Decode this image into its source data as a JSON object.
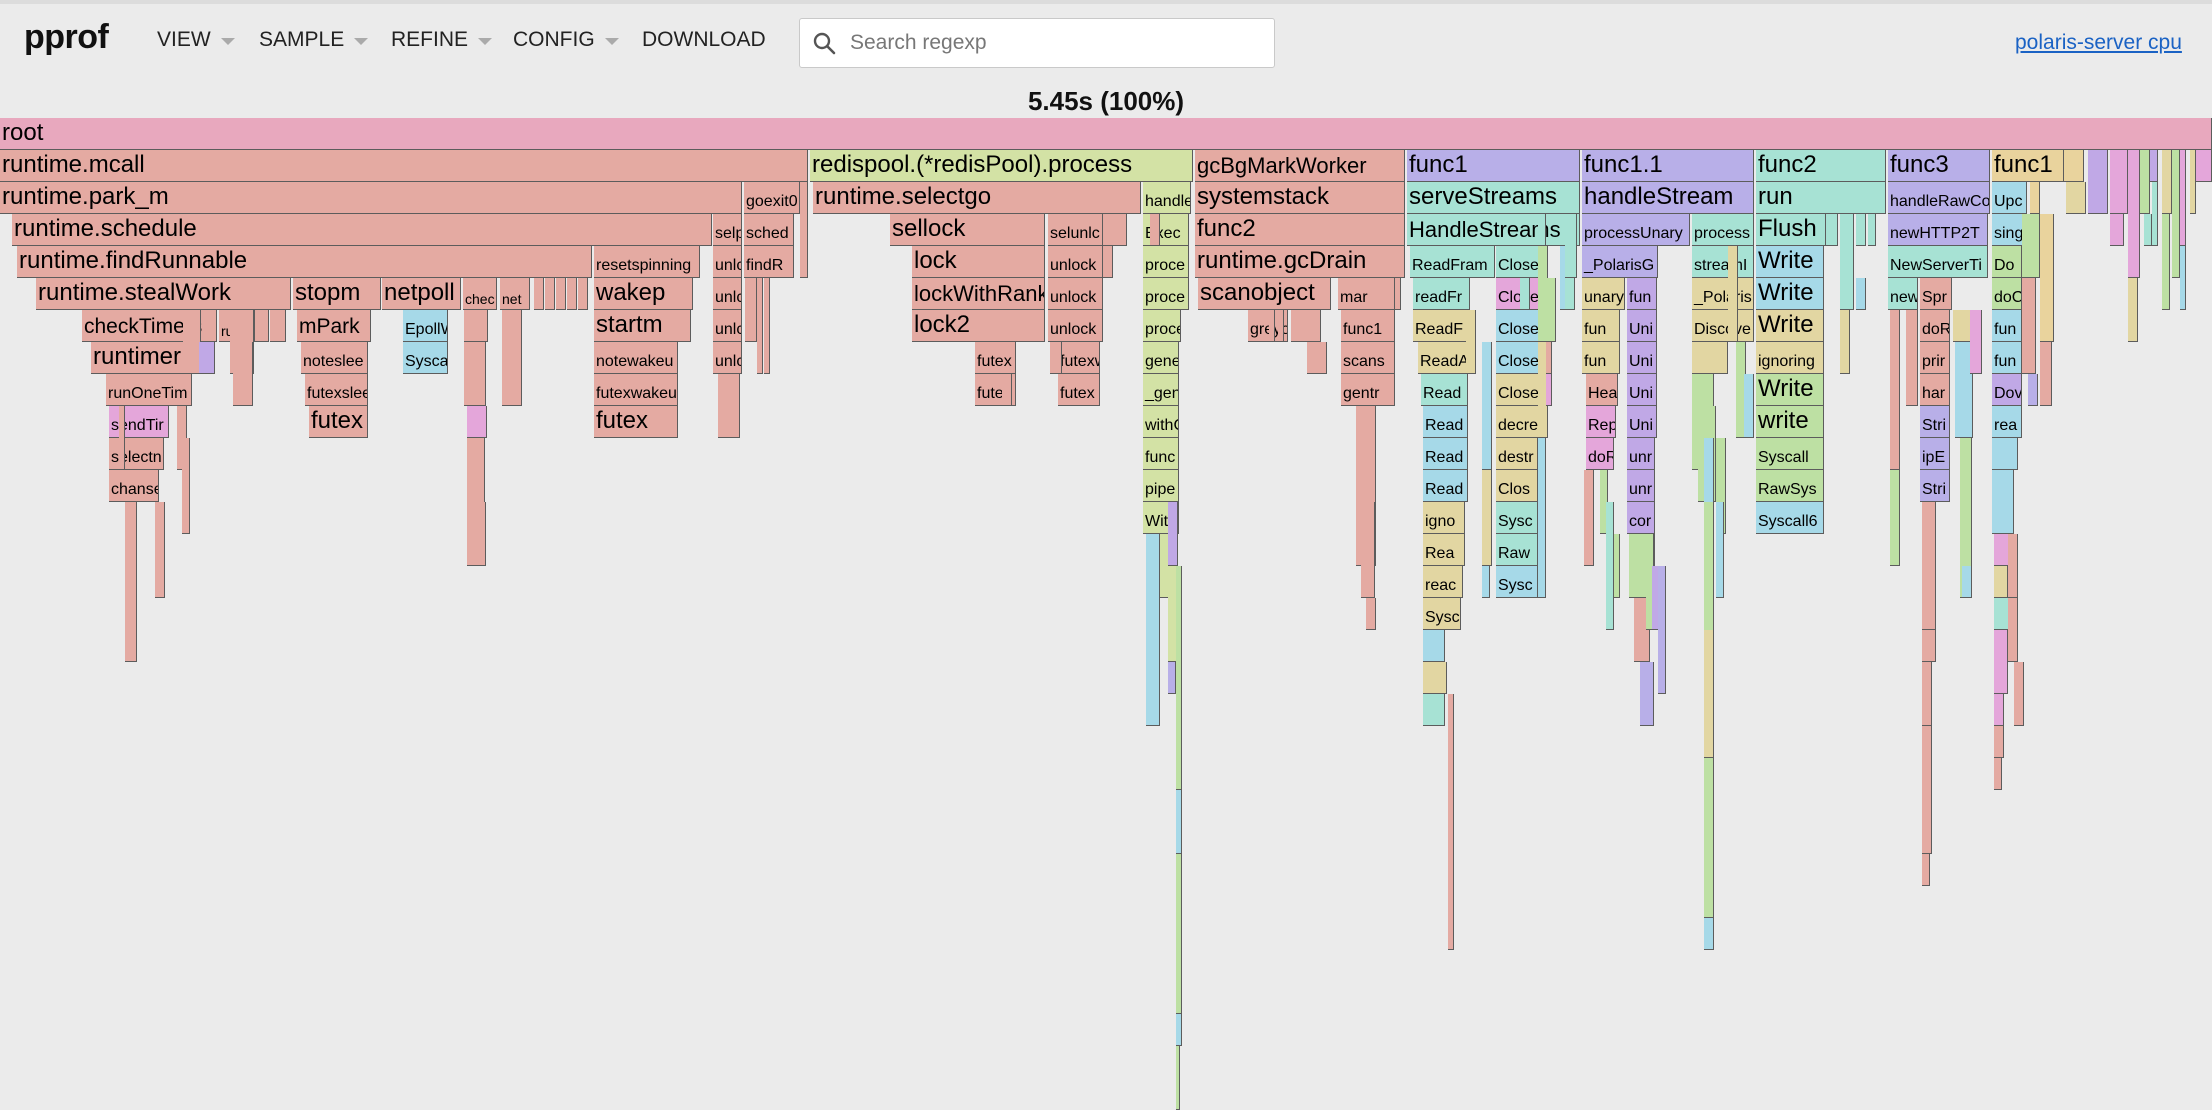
{
  "app": {
    "logo": "pprof",
    "menus": [
      {
        "label": "VIEW"
      },
      {
        "label": "SAMPLE"
      },
      {
        "label": "REFINE"
      },
      {
        "label": "CONFIG"
      },
      {
        "label": "DOWNLOAD"
      }
    ],
    "search_placeholder": "Search regexp",
    "profile_name": "polaris-server cpu",
    "total": "5.45s (100%)"
  },
  "colors": {
    "root": "#e8a8be",
    "runtime": "#e4aaa2",
    "redis": "#d3e2a5",
    "gc": "#e4aaa2",
    "grpc_purple": "#b8afe8",
    "grpc_teal": "#a7e2d4",
    "grpc_blue": "#a6d9e8",
    "tan": "#e2d6a2",
    "pink": "#e4a6da",
    "green": "#bde0a3",
    "lavender": "#c0a8e6",
    "sand": "#e9d39d"
  },
  "flame": {
    "frames": [
      {
        "label": "root"
      },
      {
        "label": "runtime.mcall"
      },
      {
        "label": "runtime.park_m"
      },
      {
        "label": "goexit0"
      },
      {
        "label": "runtime.schedule"
      },
      {
        "label": "selp"
      },
      {
        "label": "sched"
      },
      {
        "label": "runtime.findRunnable"
      },
      {
        "label": "resetspinning"
      },
      {
        "label": "unlc"
      },
      {
        "label": "findR"
      },
      {
        "label": "runtime.stealWork"
      },
      {
        "label": "stopm"
      },
      {
        "label": "netpoll"
      },
      {
        "label": "chec"
      },
      {
        "label": "net"
      },
      {
        "label": "wakep"
      },
      {
        "label": "unlc"
      },
      {
        "label": "unlc"
      },
      {
        "label": "checkTimers"
      },
      {
        "label": "runq"
      },
      {
        "label": "mPark"
      },
      {
        "label": "EpollW"
      },
      {
        "label": "startm"
      },
      {
        "label": "unlc"
      },
      {
        "label": "runtimer"
      },
      {
        "label": "noteslee"
      },
      {
        "label": "Sysca"
      },
      {
        "label": "notewakeu"
      },
      {
        "label": "runOneTim"
      },
      {
        "label": "futexslee"
      },
      {
        "label": "futexwakeu"
      },
      {
        "label": "sendTir"
      },
      {
        "label": "futex"
      },
      {
        "label": "futex"
      },
      {
        "label": "selectn"
      },
      {
        "label": "chanse"
      },
      {
        "label": "redispool.(*redisPool).process"
      },
      {
        "label": "runtime.selectgo"
      },
      {
        "label": "handle"
      },
      {
        "label": "sellock"
      },
      {
        "label": "selunlc"
      },
      {
        "label": "Exec"
      },
      {
        "label": "lock"
      },
      {
        "label": "unlock"
      },
      {
        "label": "proce"
      },
      {
        "label": "lockWithRank"
      },
      {
        "label": "unlock"
      },
      {
        "label": "proce"
      },
      {
        "label": "lock2"
      },
      {
        "label": "unlock"
      },
      {
        "label": "proce"
      },
      {
        "label": "futex"
      },
      {
        "label": "futexw"
      },
      {
        "label": "gene"
      },
      {
        "label": "futex"
      },
      {
        "label": "futex"
      },
      {
        "label": "_gen"
      },
      {
        "label": "withC"
      },
      {
        "label": "func"
      },
      {
        "label": "pipe"
      },
      {
        "label": "Wit"
      },
      {
        "label": "gcBgMarkWorker"
      },
      {
        "label": "systemstack"
      },
      {
        "label": "func2"
      },
      {
        "label": "runtime.gcDrain"
      },
      {
        "label": "scanobject"
      },
      {
        "label": "markro"
      },
      {
        "label": "greyo"
      },
      {
        "label": "func1"
      },
      {
        "label": "scans"
      },
      {
        "label": "gentr"
      },
      {
        "label": "func1"
      },
      {
        "label": "serveStreams"
      },
      {
        "label": "HandleStreams"
      },
      {
        "label": "ReadFram"
      },
      {
        "label": "Close"
      },
      {
        "label": "readFr"
      },
      {
        "label": "Close"
      },
      {
        "label": "ReadF"
      },
      {
        "label": "Close"
      },
      {
        "label": "ReadA"
      },
      {
        "label": "Close"
      },
      {
        "label": "Read"
      },
      {
        "label": "Close"
      },
      {
        "label": "Read"
      },
      {
        "label": "decre"
      },
      {
        "label": "Read"
      },
      {
        "label": "destr"
      },
      {
        "label": "Read"
      },
      {
        "label": "Clos"
      },
      {
        "label": "igno"
      },
      {
        "label": "Sysc"
      },
      {
        "label": "Rea"
      },
      {
        "label": "Raw"
      },
      {
        "label": "reac"
      },
      {
        "label": "Sysc"
      },
      {
        "label": "Sysc"
      },
      {
        "label": "func1.1"
      },
      {
        "label": "handleStream"
      },
      {
        "label": "processUnary"
      },
      {
        "label": "process"
      },
      {
        "label": "_PolarisG"
      },
      {
        "label": "streamI"
      },
      {
        "label": "unary"
      },
      {
        "label": "fun"
      },
      {
        "label": "_Polaris"
      },
      {
        "label": "fun"
      },
      {
        "label": "Uni"
      },
      {
        "label": "Discove"
      },
      {
        "label": "fun"
      },
      {
        "label": "Uni"
      },
      {
        "label": "Hea"
      },
      {
        "label": "Uni"
      },
      {
        "label": "Rep"
      },
      {
        "label": "Uni"
      },
      {
        "label": "doR"
      },
      {
        "label": "unr"
      },
      {
        "label": "unr"
      },
      {
        "label": "cor"
      },
      {
        "label": "func2"
      },
      {
        "label": "run"
      },
      {
        "label": "Flush"
      },
      {
        "label": "Write"
      },
      {
        "label": "Write"
      },
      {
        "label": "Write"
      },
      {
        "label": "ignoring"
      },
      {
        "label": "Write"
      },
      {
        "label": "write"
      },
      {
        "label": "Syscall"
      },
      {
        "label": "RawSys"
      },
      {
        "label": "Syscall6"
      },
      {
        "label": "func3"
      },
      {
        "label": "handleRawCo"
      },
      {
        "label": "newHTTP2T"
      },
      {
        "label": "NewServerTi"
      },
      {
        "label": "new"
      },
      {
        "label": "Spr"
      },
      {
        "label": "doR"
      },
      {
        "label": "prir"
      },
      {
        "label": "har"
      },
      {
        "label": "Stri"
      },
      {
        "label": "ipE"
      },
      {
        "label": "Stri"
      },
      {
        "label": "func1"
      },
      {
        "label": "Upc"
      },
      {
        "label": "sing"
      },
      {
        "label": "Do"
      },
      {
        "label": "doC"
      },
      {
        "label": "fun"
      },
      {
        "label": "fun"
      },
      {
        "label": "Dov"
      },
      {
        "label": "rea"
      }
    ]
  }
}
